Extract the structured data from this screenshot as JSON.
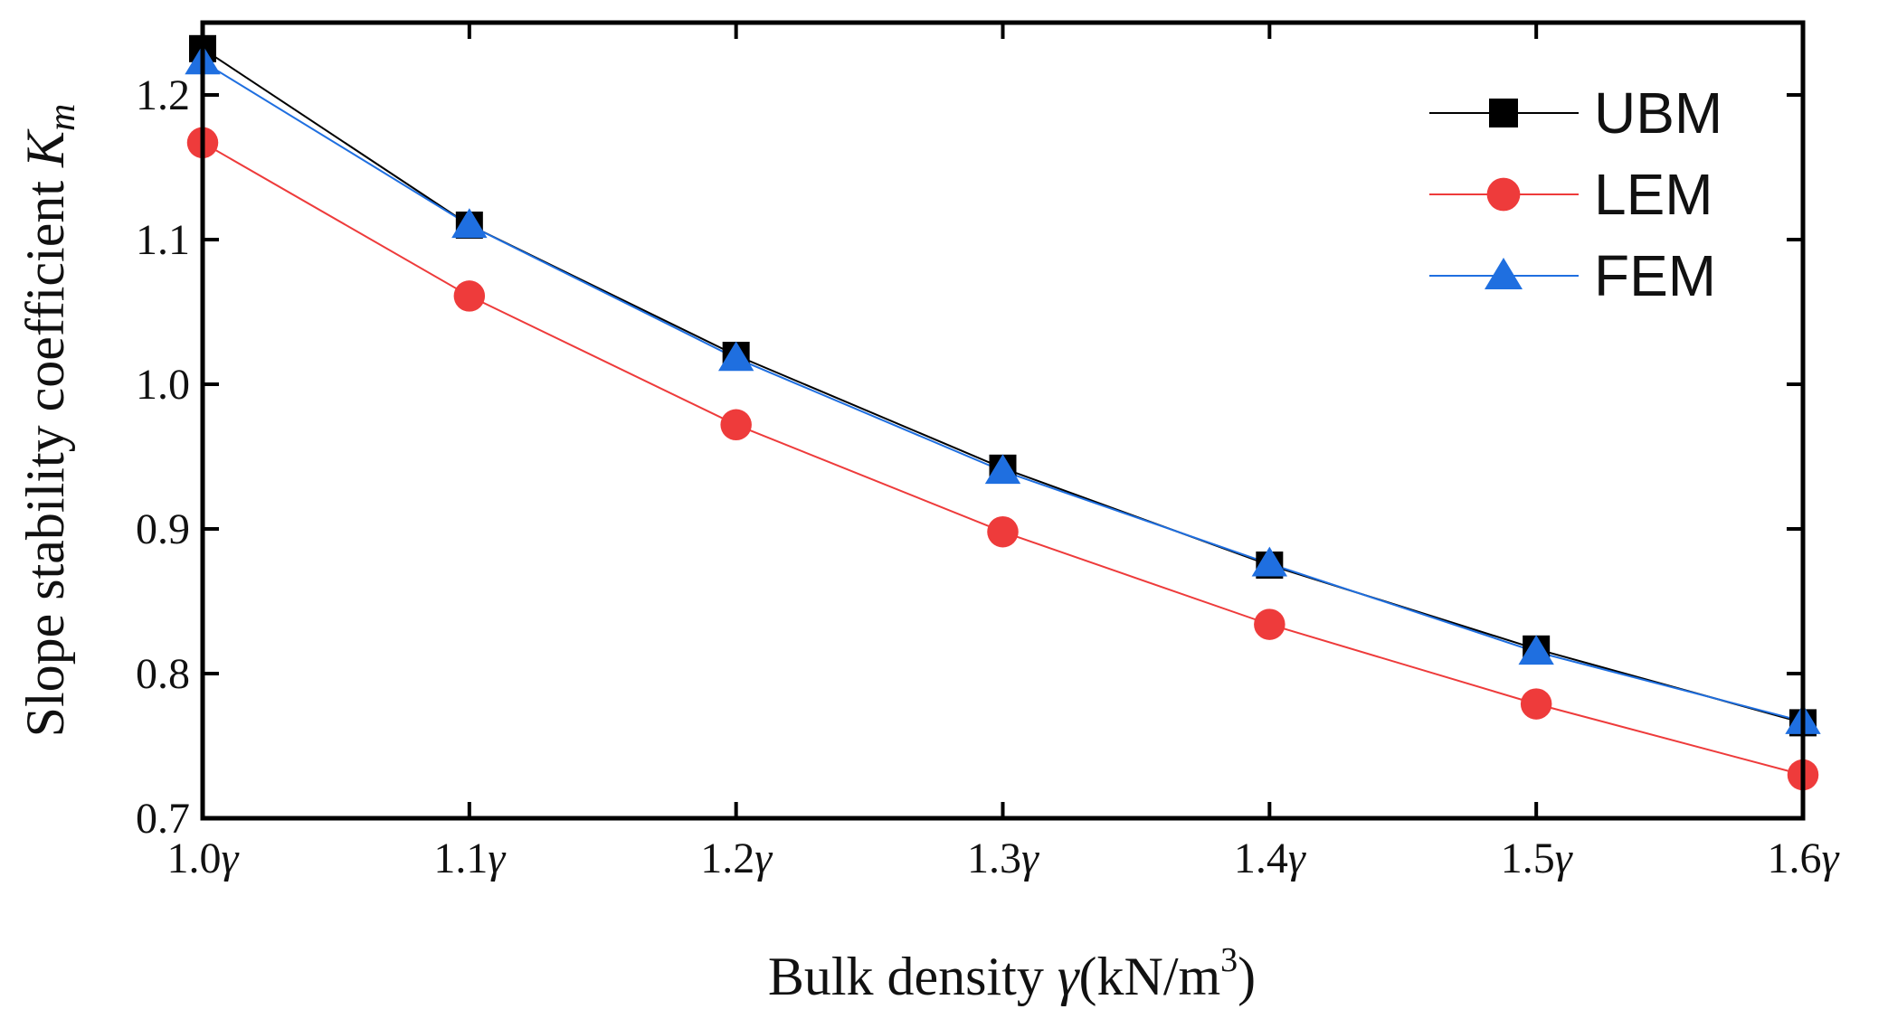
{
  "chart_data": {
    "type": "line",
    "categories": [
      "1.0",
      "1.1",
      "1.2",
      "1.3",
      "1.4",
      "1.5",
      "1.6"
    ],
    "x_suffix": "γ",
    "x": [
      1.0,
      1.1,
      1.2,
      1.3,
      1.4,
      1.5,
      1.6
    ],
    "xlim": [
      1.0,
      1.6
    ],
    "ylim": [
      0.7,
      1.25
    ],
    "yticks": [
      "0.7",
      "0.8",
      "0.9",
      "1.0",
      "1.1",
      "1.2"
    ],
    "xlabel": {
      "text": "Bulk density ",
      "symbol": "γ",
      "unit": "(kN/m",
      "exp": "3",
      "close": ")"
    },
    "ylabel": {
      "text": "Slope stability coefficient ",
      "symbol": "K",
      "sub": "m"
    },
    "legend_position": "top-right",
    "series": [
      {
        "name": "UBM",
        "color": "#000000",
        "marker": "square",
        "values": [
          1.232,
          1.11,
          1.02,
          0.942,
          0.875,
          0.817,
          0.766
        ]
      },
      {
        "name": "LEM",
        "color": "#ee3b3b",
        "marker": "circle",
        "values": [
          1.167,
          1.061,
          0.972,
          0.898,
          0.834,
          0.779,
          0.73
        ]
      },
      {
        "name": "FEM",
        "color": "#1f6fe0",
        "marker": "triangle",
        "values": [
          1.223,
          1.11,
          1.018,
          0.94,
          0.876,
          0.815,
          0.767
        ]
      }
    ]
  }
}
